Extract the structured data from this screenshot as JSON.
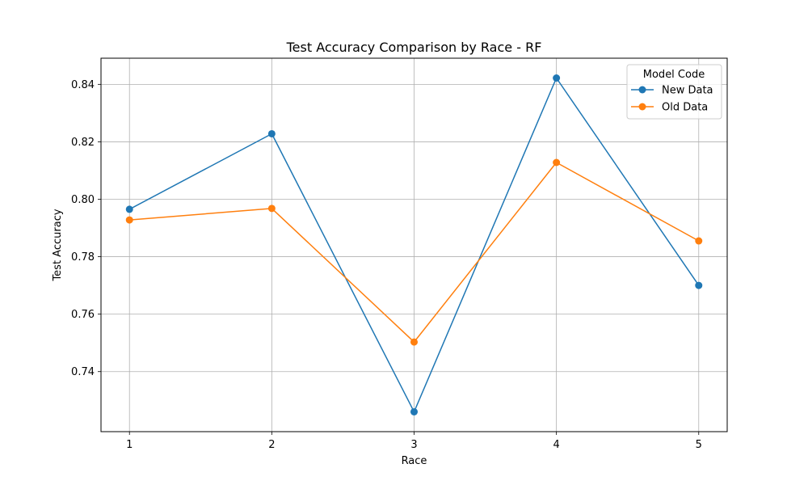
{
  "chart_data": {
    "type": "line",
    "title": "Test Accuracy Comparison by Race - RF",
    "xlabel": "Race",
    "ylabel": "Test Accuracy",
    "x": [
      1,
      2,
      3,
      4,
      5
    ],
    "x_ticks": [
      "1",
      "2",
      "3",
      "4",
      "5"
    ],
    "y_ticks": [
      "0.74",
      "0.76",
      "0.78",
      "0.80",
      "0.82",
      "0.84"
    ],
    "xlim": [
      0.8,
      5.2
    ],
    "ylim": [
      0.7191,
      0.8491
    ],
    "grid": true,
    "legend": {
      "title": "Model Code",
      "placement": "top-right"
    },
    "series": [
      {
        "name": "New Data",
        "color": "#1f77b4",
        "values": [
          0.7965,
          0.8228,
          0.726,
          0.8422,
          0.77
        ]
      },
      {
        "name": "Old Data",
        "color": "#ff7f0e",
        "values": [
          0.7928,
          0.7968,
          0.7503,
          0.8128,
          0.7855
        ]
      }
    ]
  }
}
